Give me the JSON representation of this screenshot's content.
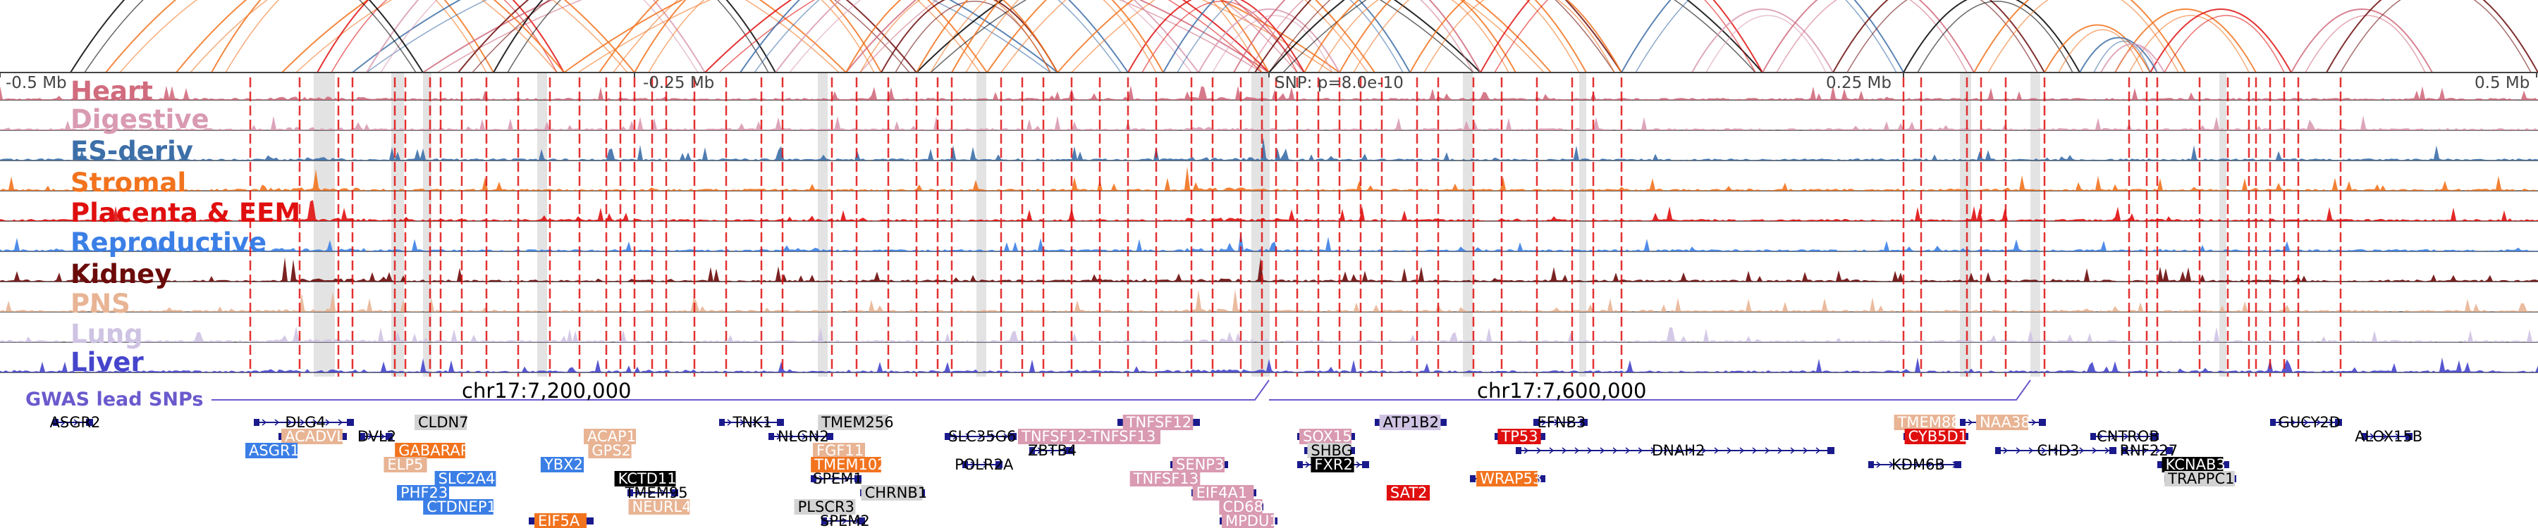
{
  "axis": {
    "ticks": [
      "-0.5 Mb",
      "-0.25 Mb",
      "SNP: p=8.0e-10",
      "0.25 Mb",
      "0.5 Mb"
    ]
  },
  "tracks": [
    {
      "label": "Heart",
      "color": "#d16b7e"
    },
    {
      "label": "Digestive",
      "color": "#d99ab2"
    },
    {
      "label": "ES-deriv",
      "color": "#3d6fa8"
    },
    {
      "label": "Stromal",
      "color": "#f2731e"
    },
    {
      "label": "Placenta & EEM",
      "color": "#e00f0f"
    },
    {
      "label": "Reproductive",
      "color": "#3b7fe6"
    },
    {
      "label": "Kidney",
      "color": "#6b0a0a"
    },
    {
      "label": "PNS",
      "color": "#e8b494"
    },
    {
      "label": "Lung",
      "color": "#cfc3e3"
    },
    {
      "label": "Liver",
      "color": "#4545cc"
    }
  ],
  "gwas": {
    "label": "GWAS lead SNPs",
    "color": "#6a5acd",
    "positions": [
      "chr17:7,200,000",
      "chr17:7,600,000"
    ]
  },
  "genes": [
    {
      "name": "ASGR2",
      "bg": "",
      "fg": "#000000"
    },
    {
      "name": "DLG4",
      "bg": "",
      "fg": "#000000"
    },
    {
      "name": "CLDN7",
      "bg": "#d3d3d3",
      "fg": "#000000"
    },
    {
      "name": "ACADVL",
      "bg": "#e8b494",
      "fg": "#ffffff"
    },
    {
      "name": "DVL2",
      "bg": "",
      "fg": "#000000"
    },
    {
      "name": "ASGR1",
      "bg": "#3b7fe6",
      "fg": "#ffffff"
    },
    {
      "name": "GABARAP",
      "bg": "#f2731e",
      "fg": "#ffffff"
    },
    {
      "name": "ELP5",
      "bg": "#e8b494",
      "fg": "#ffffff"
    },
    {
      "name": "SLC2A4",
      "bg": "#3b7fe6",
      "fg": "#ffffff"
    },
    {
      "name": "PHF23",
      "bg": "#3b7fe6",
      "fg": "#ffffff"
    },
    {
      "name": "CTDNEP1",
      "bg": "#3b7fe6",
      "fg": "#ffffff"
    },
    {
      "name": "ACAP1",
      "bg": "#e8b494",
      "fg": "#ffffff"
    },
    {
      "name": "GPS2",
      "bg": "#e8b494",
      "fg": "#ffffff"
    },
    {
      "name": "YBX2",
      "bg": "#3b7fe6",
      "fg": "#ffffff"
    },
    {
      "name": "KCTD11",
      "bg": "#000000",
      "fg": "#ffffff"
    },
    {
      "name": "TMEM95",
      "bg": "",
      "fg": "#000000"
    },
    {
      "name": "NEURL4",
      "bg": "#e8b494",
      "fg": "#ffffff"
    },
    {
      "name": "EIF5A",
      "bg": "#f2731e",
      "fg": "#ffffff"
    },
    {
      "name": "TNK1",
      "bg": "",
      "fg": "#000000"
    },
    {
      "name": "NLGN2",
      "bg": "",
      "fg": "#000000"
    },
    {
      "name": "TMEM256",
      "bg": "#d3d3d3",
      "fg": "#000000"
    },
    {
      "name": "FGF11",
      "bg": "#e8b494",
      "fg": "#ffffff"
    },
    {
      "name": "TMEM102",
      "bg": "#f2731e",
      "fg": "#ffffff"
    },
    {
      "name": "SPEM1",
      "bg": "",
      "fg": "#000000"
    },
    {
      "name": "CHRNB1",
      "bg": "#d3d3d3",
      "fg": "#000000"
    },
    {
      "name": "PLSCR3",
      "bg": "#d3d3d3",
      "fg": "#000000"
    },
    {
      "name": "SPEM2",
      "bg": "",
      "fg": "#000000"
    },
    {
      "name": "SLC35G6",
      "bg": "",
      "fg": "#000000"
    },
    {
      "name": "ZBTB4",
      "bg": "",
      "fg": "#000000"
    },
    {
      "name": "POLR2A",
      "bg": "",
      "fg": "#000000"
    },
    {
      "name": "TNFSF12-TNFSF13",
      "bg": "#d99ab2",
      "fg": "#ffffff"
    },
    {
      "name": "TNFSF12",
      "bg": "#d99ab2",
      "fg": "#ffffff"
    },
    {
      "name": "SENP3",
      "bg": "#d99ab2",
      "fg": "#ffffff"
    },
    {
      "name": "TNFSF13",
      "bg": "#d99ab2",
      "fg": "#ffffff"
    },
    {
      "name": "EIF4A1",
      "bg": "#d99ab2",
      "fg": "#ffffff"
    },
    {
      "name": "CD68",
      "bg": "#d99ab2",
      "fg": "#ffffff"
    },
    {
      "name": "MPDU1",
      "bg": "#d99ab2",
      "fg": "#ffffff"
    },
    {
      "name": "SOX15",
      "bg": "#d99ab2",
      "fg": "#ffffff"
    },
    {
      "name": "SHBG",
      "bg": "#d3d3d3",
      "fg": "#000000"
    },
    {
      "name": "FXR2",
      "bg": "#000000",
      "fg": "#ffffff"
    },
    {
      "name": "SAT2",
      "bg": "#e00f0f",
      "fg": "#ffffff"
    },
    {
      "name": "ATP1B2",
      "bg": "#cfc3e3",
      "fg": "#000000"
    },
    {
      "name": "WRAP53",
      "bg": "#f2731e",
      "fg": "#ffffff"
    },
    {
      "name": "EFNB3",
      "bg": "",
      "fg": "#000000"
    },
    {
      "name": "TP53",
      "bg": "#e00f0f",
      "fg": "#ffffff"
    },
    {
      "name": "DNAH2",
      "bg": "",
      "fg": "#000000"
    },
    {
      "name": "TMEM88",
      "bg": "#e8b494",
      "fg": "#ffffff"
    },
    {
      "name": "CYB5D1",
      "bg": "#e00f0f",
      "fg": "#ffffff"
    },
    {
      "name": "KDM6B",
      "bg": "",
      "fg": "#000000"
    },
    {
      "name": "NAA38",
      "bg": "#e8b494",
      "fg": "#ffffff"
    },
    {
      "name": "CHD3",
      "bg": "",
      "fg": "#000000"
    },
    {
      "name": "CNTROB",
      "bg": "",
      "fg": "#000000"
    },
    {
      "name": "RNF227",
      "bg": "",
      "fg": "#000000"
    },
    {
      "name": "KCNAB3",
      "bg": "#000000",
      "fg": "#ffffff"
    },
    {
      "name": "TRAPPC1",
      "bg": "#d3d3d3",
      "fg": "#000000"
    },
    {
      "name": "GUCY2D",
      "bg": "",
      "fg": "#000000"
    },
    {
      "name": "ALOX15B",
      "bg": "",
      "fg": "#000000"
    }
  ]
}
